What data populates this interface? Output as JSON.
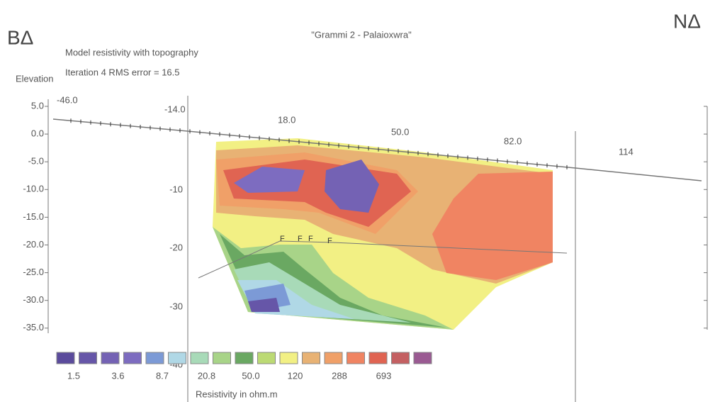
{
  "header": {
    "left_marker": "BΔ",
    "right_marker": "NΔ",
    "title": "\"Grammi 2 - Palaioxwra\"",
    "subtitle_1": "Model resistivity with topography",
    "subtitle_2": "Iteration 4 RMS error = 16.5"
  },
  "elevation_axis": {
    "label": "Elevation",
    "ticks": [
      "5.0",
      "0.0",
      "-5.0",
      "-10.0",
      "-15.0",
      "-20.0",
      "-25.0",
      "-30.0",
      "-35.0"
    ]
  },
  "distance_labels": [
    "-46.0",
    "-14.0",
    "18.0",
    "50.0",
    "82.0",
    "114"
  ],
  "depth_labels": [
    "-10",
    "-20",
    "-30",
    "-40"
  ],
  "fault_markers": [
    "F",
    "F",
    "F",
    "F"
  ],
  "legend": {
    "title": "Resistivity in ohm.m",
    "labels": [
      "1.5",
      "3.6",
      "8.7",
      "20.8",
      "50.0",
      "120",
      "288",
      "693"
    ],
    "colors": [
      "#5b4b9c",
      "#6656a8",
      "#7462b4",
      "#7d6cc0",
      "#7c9ad6",
      "#b0d8e6",
      "#a8dab8",
      "#a8d488",
      "#6aa862",
      "#bcda74",
      "#f2f084",
      "#e8b274",
      "#f0a068",
      "#f08462",
      "#e06452",
      "#c46062",
      "#9a5a92"
    ]
  }
}
